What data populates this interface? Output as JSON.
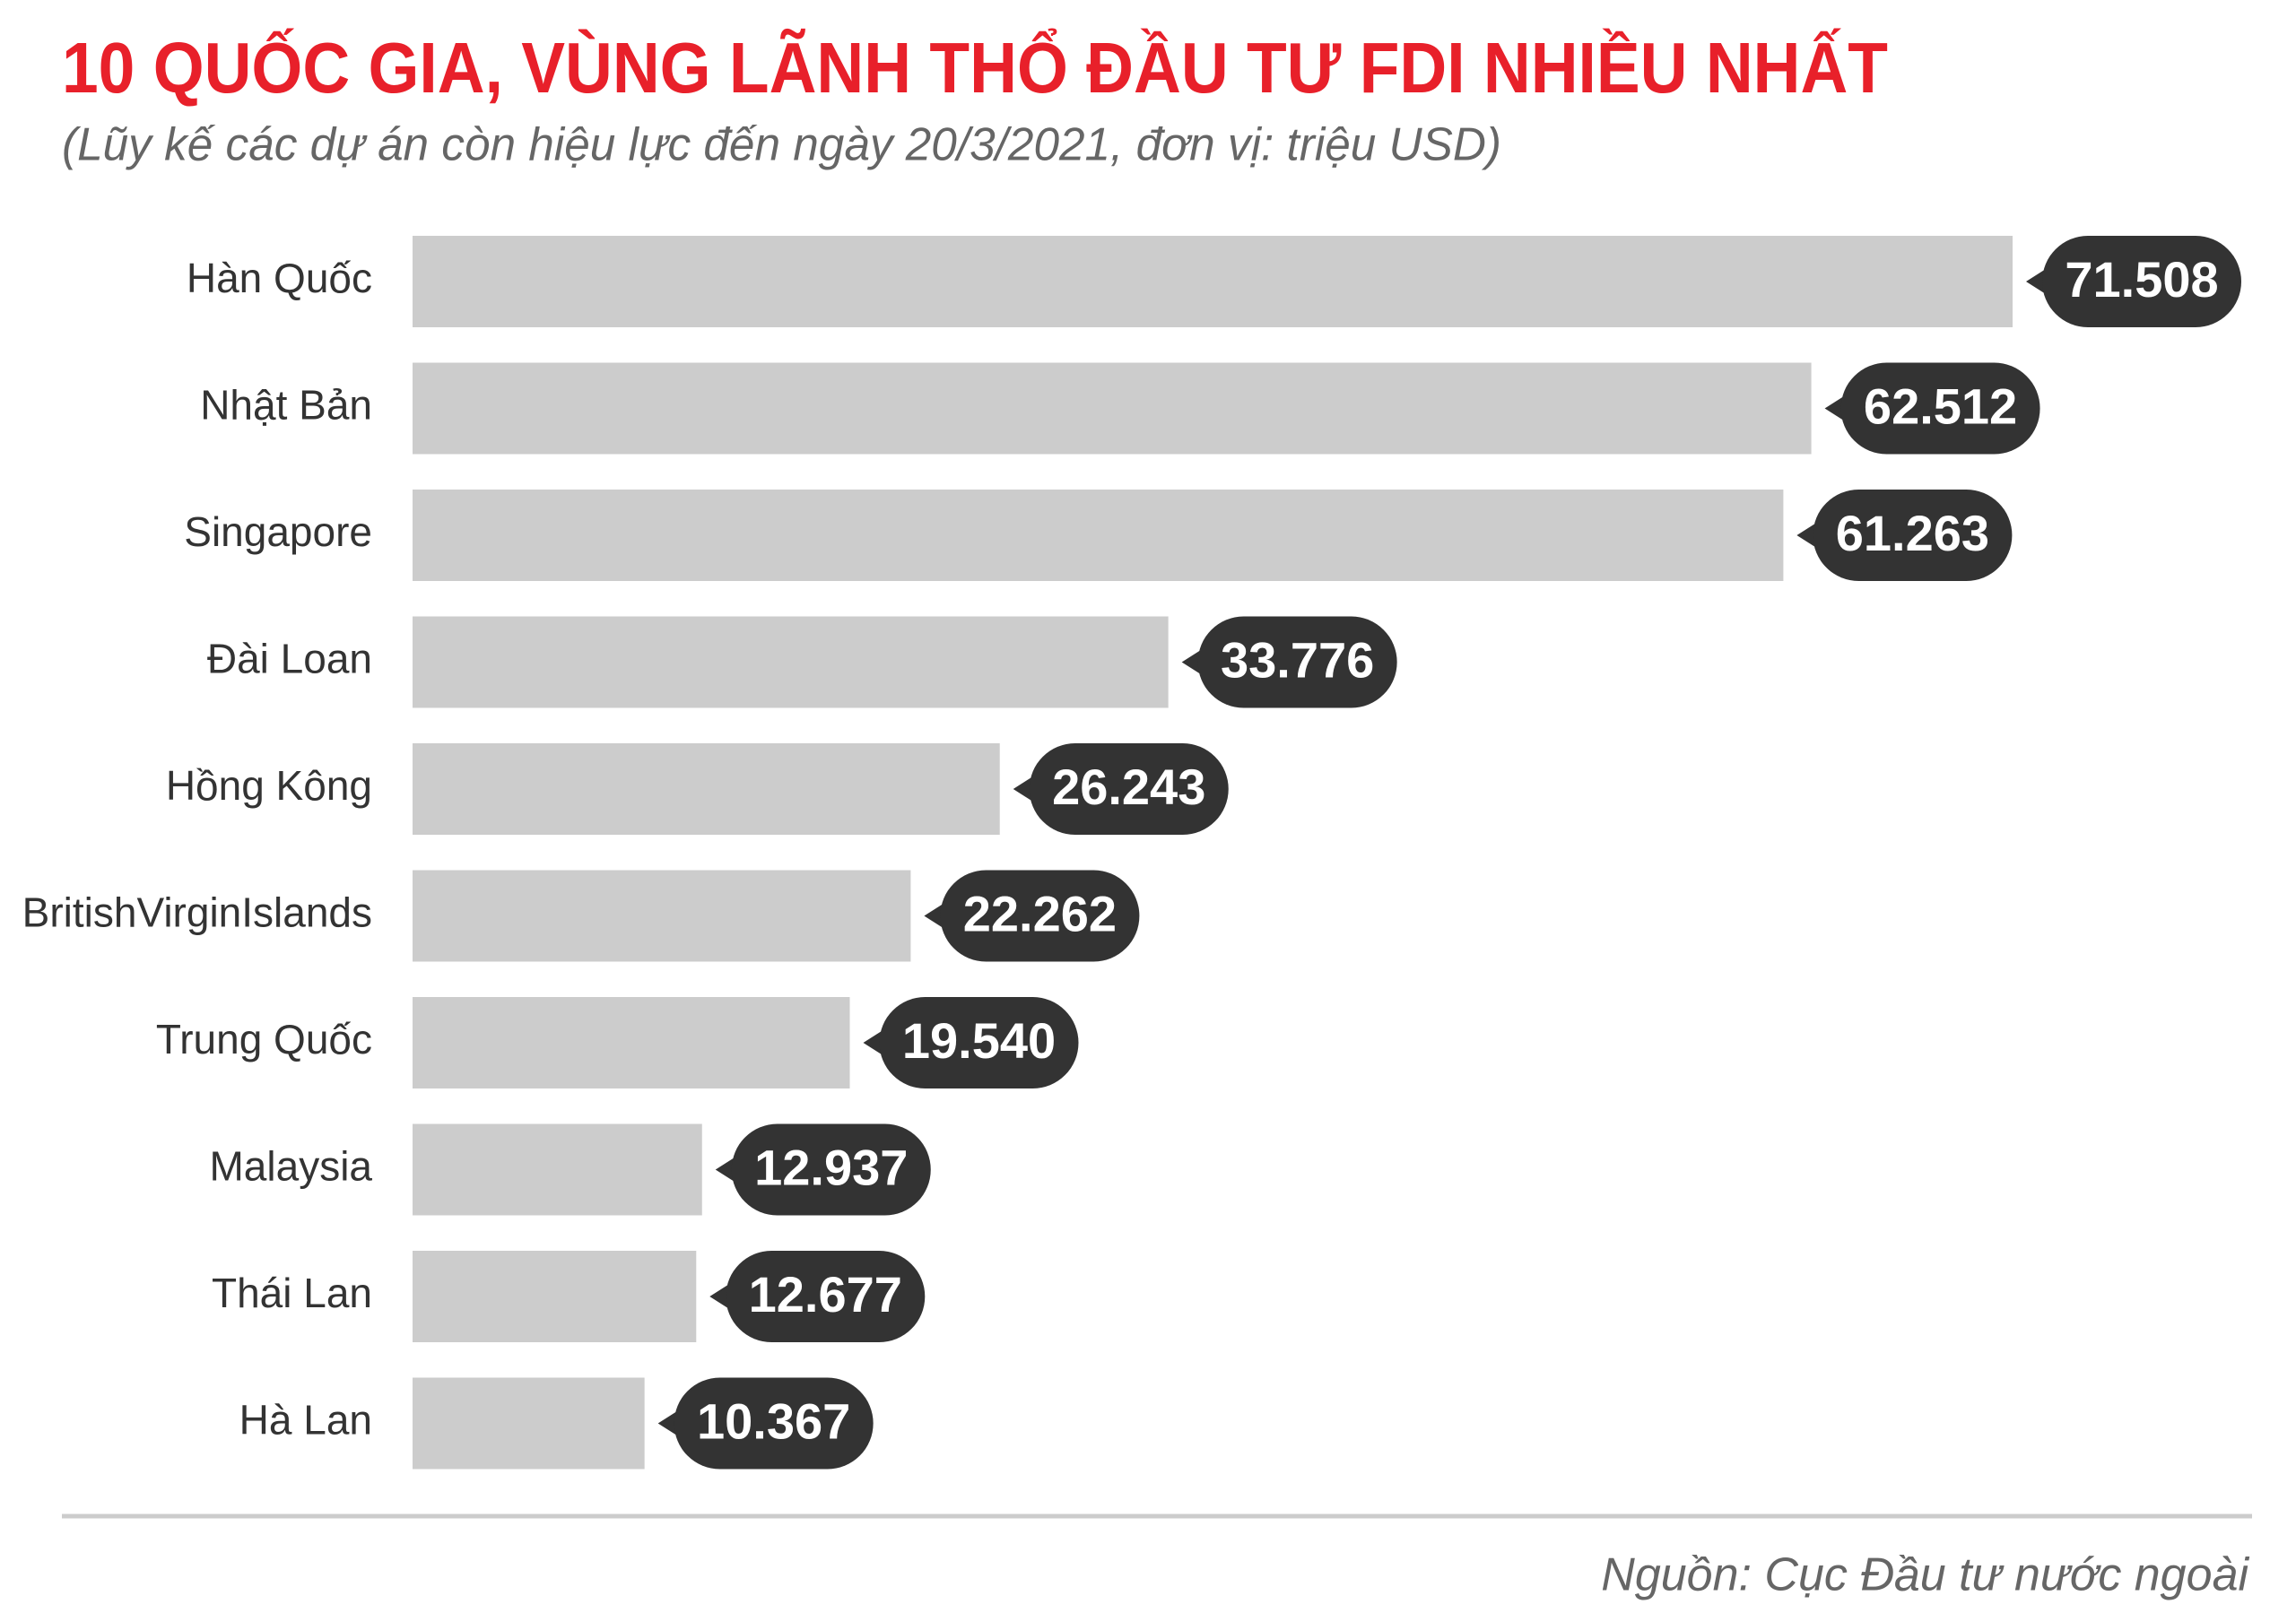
{
  "chart_data": {
    "type": "bar",
    "orientation": "horizontal",
    "title": "10 QUỐC GIA, VÙNG LÃNH THỔ ĐẦU TƯ FDI NHIỀU NHẤT",
    "subtitle": "(Lũy kế các dự án còn hiệu lực đến ngày 20/3/2021, đơn vị: triệu USD)",
    "categories": [
      "Hàn Quốc",
      "Nhật Bản",
      "Singapore",
      "Đài Loan",
      "Hồng Kông",
      "BritishVirginIslands",
      "Trung Quốc",
      "Malaysia",
      "Thái Lan",
      "Hà Lan"
    ],
    "values": [
      71508,
      62512,
      61263,
      33776,
      26243,
      22262,
      19540,
      12937,
      12677,
      10367
    ],
    "value_labels": [
      "71.508",
      "62.512",
      "61.263",
      "33.776",
      "26.243",
      "22.262",
      "19.540",
      "12.937",
      "12.677",
      "10.367"
    ],
    "color": "#cccccc",
    "label_color": "#333333",
    "source": "Nguồn: Cục Đầu tư nước ngoài"
  }
}
